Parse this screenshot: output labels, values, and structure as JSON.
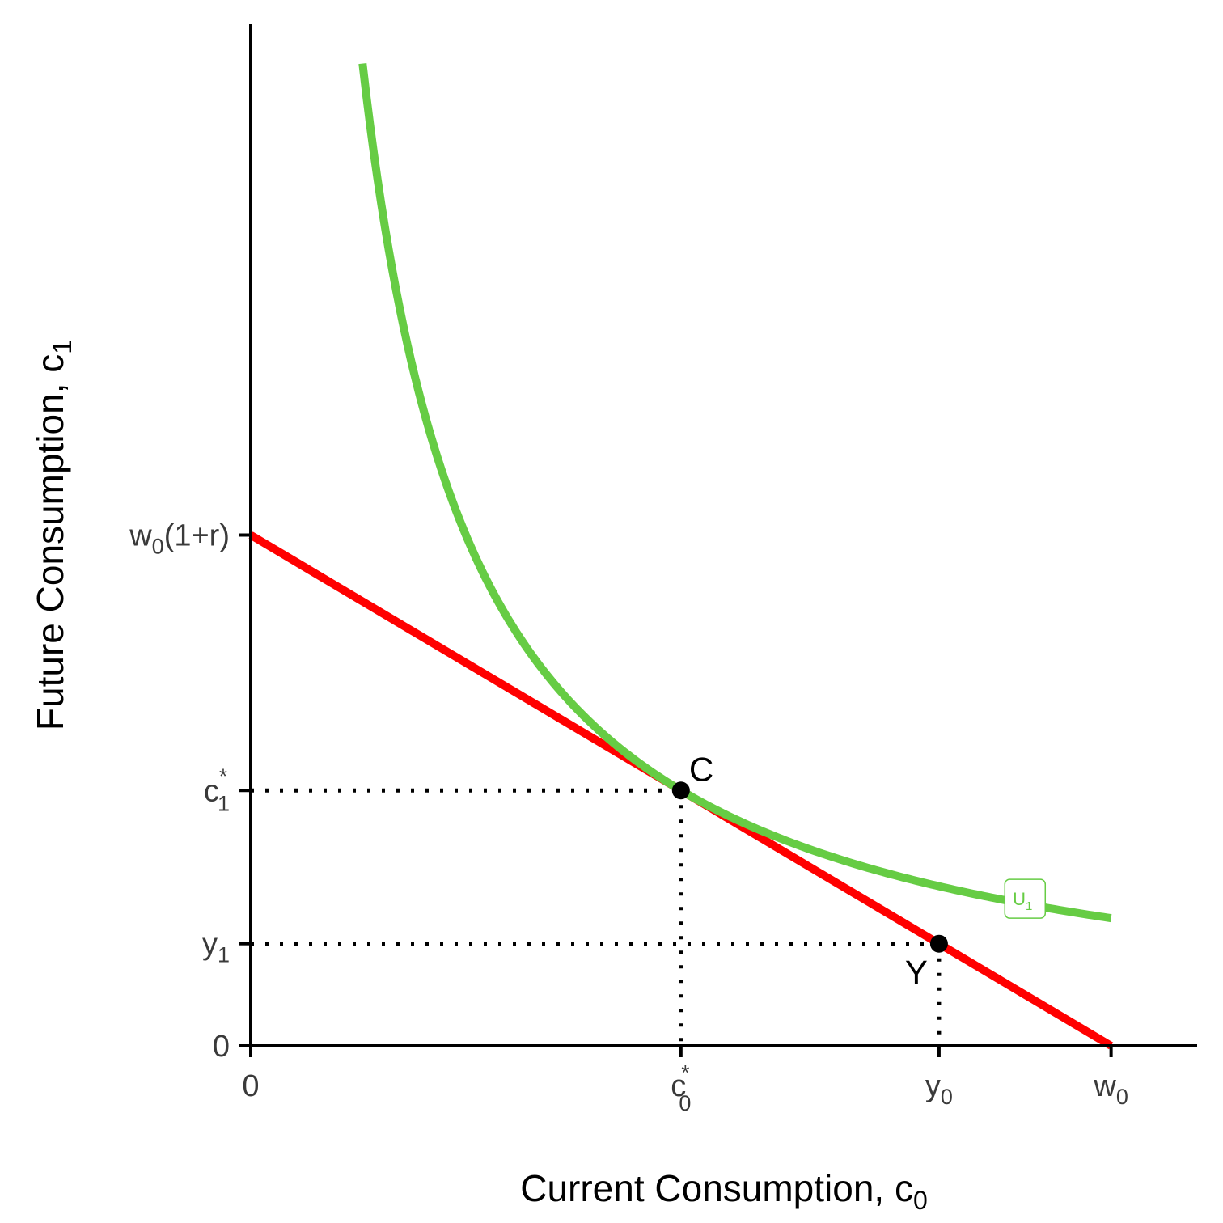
{
  "colors": {
    "budget_line": "#ff0000",
    "indifference_curve": "#66cc44",
    "axis": "#000000",
    "points": "#000000",
    "tick_text": "#3a3a3a"
  },
  "chart_data": {
    "type": "line",
    "title": "",
    "xlabel": "Current Consumption, c",
    "xlabel_sub": "0",
    "ylabel": "Future Consumption, c",
    "ylabel_sub": "1",
    "xlim": [
      0,
      1.1
    ],
    "ylim": [
      0,
      2.5
    ],
    "grid": false,
    "legend": "none",
    "x_ticks": [
      {
        "value": 0,
        "label": "0",
        "sub": "",
        "sup": ""
      },
      {
        "value": 0.5,
        "label": "c",
        "sub": "0",
        "sup": "*"
      },
      {
        "value": 0.8,
        "label": "y",
        "sub": "0",
        "sup": ""
      },
      {
        "value": 1.0,
        "label": "w",
        "sub": "0",
        "sup": ""
      }
    ],
    "y_ticks": [
      {
        "value": 0,
        "label": "0",
        "sub": "",
        "pre": "",
        "suffix": "",
        "sup": ""
      },
      {
        "value": 0.25,
        "label": "y",
        "sub": "1",
        "pre": "",
        "suffix": "",
        "sup": ""
      },
      {
        "value": 0.625,
        "label": "c",
        "sub": "1",
        "pre": "",
        "suffix": "",
        "sup": "*"
      },
      {
        "value": 1.25,
        "label": "w",
        "sub": "0",
        "pre": "",
        "suffix": "(1+r)",
        "sup": ""
      }
    ],
    "series": [
      {
        "name": "",
        "kind": "budget_line",
        "x": [
          0,
          1.0
        ],
        "y": [
          1.25,
          0
        ]
      },
      {
        "name": "",
        "kind": "indifference_curve",
        "label": "U",
        "label_sub": "1",
        "label_at": [
          0.9,
          0.36
        ],
        "k": 0.3125,
        "x_range": [
          0.13,
          1.0
        ]
      }
    ],
    "points": [
      {
        "label": "C",
        "x": 0.5,
        "y": 0.625,
        "label_pos": "above-right"
      },
      {
        "label": "Y",
        "x": 0.8,
        "y": 0.25,
        "label_pos": "below-left"
      }
    ],
    "guides": [
      {
        "x": 0.5,
        "y": 0.625
      },
      {
        "x": 0.8,
        "y": 0.25
      }
    ]
  }
}
